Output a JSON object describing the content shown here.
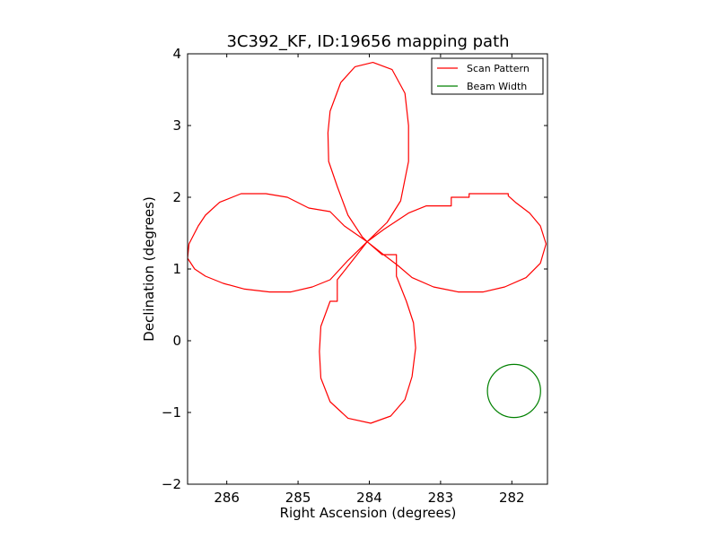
{
  "chart_data": {
    "type": "line",
    "title": "3C392_KF, ID:19656 mapping path",
    "xlabel": "Right Ascension (degrees)",
    "ylabel": "Declination (degrees)",
    "xlim": [
      286.55,
      281.5
    ],
    "ylim": [
      -2,
      4
    ],
    "x_ticks": [
      286,
      285,
      284,
      283,
      282
    ],
    "y_ticks": [
      -2,
      -1,
      0,
      1,
      2,
      3,
      4
    ],
    "x_tick_labels": [
      "286",
      "285",
      "284",
      "283",
      "282"
    ],
    "y_tick_labels": [
      "−2",
      "−1",
      "0",
      "1",
      "2",
      "3",
      "4"
    ],
    "grid": false,
    "legend_position": "top-right",
    "series": [
      {
        "name": "Scan Pattern",
        "color": "#ff0000",
        "points": [
          [
            284.03,
            1.38
          ],
          [
            283.75,
            1.65
          ],
          [
            283.56,
            1.95
          ],
          [
            283.45,
            2.5
          ],
          [
            283.45,
            3.0
          ],
          [
            283.5,
            3.45
          ],
          [
            283.68,
            3.78
          ],
          [
            283.95,
            3.88
          ],
          [
            284.2,
            3.82
          ],
          [
            284.4,
            3.6
          ],
          [
            284.55,
            3.2
          ],
          [
            284.58,
            2.9
          ],
          [
            284.57,
            2.5
          ],
          [
            284.45,
            2.15
          ],
          [
            284.3,
            1.75
          ],
          [
            284.1,
            1.45
          ],
          [
            284.03,
            1.38
          ],
          [
            283.8,
            1.55
          ],
          [
            283.45,
            1.78
          ],
          [
            283.2,
            1.88
          ],
          [
            282.85,
            1.88
          ],
          [
            282.85,
            2.0
          ],
          [
            282.6,
            2.0
          ],
          [
            282.6,
            2.05
          ],
          [
            282.3,
            2.05
          ],
          [
            282.05,
            2.05
          ],
          [
            282.05,
            2.02
          ],
          [
            281.95,
            1.93
          ],
          [
            281.75,
            1.78
          ],
          [
            281.6,
            1.6
          ],
          [
            281.52,
            1.35
          ],
          [
            281.6,
            1.08
          ],
          [
            281.8,
            0.88
          ],
          [
            282.1,
            0.75
          ],
          [
            282.4,
            0.68
          ],
          [
            282.75,
            0.68
          ],
          [
            283.1,
            0.75
          ],
          [
            283.4,
            0.88
          ],
          [
            283.6,
            1.05
          ],
          [
            283.8,
            1.2
          ],
          [
            284.03,
            1.38
          ],
          [
            284.3,
            1.12
          ],
          [
            284.55,
            0.85
          ],
          [
            284.8,
            0.75
          ],
          [
            285.1,
            0.68
          ],
          [
            285.4,
            0.68
          ],
          [
            285.75,
            0.72
          ],
          [
            286.05,
            0.8
          ],
          [
            286.3,
            0.9
          ],
          [
            286.45,
            1.0
          ],
          [
            286.55,
            1.15
          ],
          [
            286.53,
            1.35
          ],
          [
            286.4,
            1.6
          ],
          [
            286.3,
            1.75
          ],
          [
            286.1,
            1.93
          ],
          [
            285.8,
            2.05
          ],
          [
            285.45,
            2.05
          ],
          [
            285.15,
            2.0
          ],
          [
            284.85,
            1.85
          ],
          [
            284.55,
            1.8
          ],
          [
            284.35,
            1.6
          ],
          [
            284.03,
            1.38
          ],
          [
            283.82,
            1.2
          ],
          [
            283.62,
            1.2
          ],
          [
            283.62,
            0.9
          ],
          [
            283.48,
            0.55
          ],
          [
            283.38,
            0.25
          ],
          [
            283.35,
            -0.1
          ],
          [
            283.4,
            -0.5
          ],
          [
            283.5,
            -0.82
          ],
          [
            283.7,
            -1.05
          ],
          [
            283.98,
            -1.15
          ],
          [
            284.3,
            -1.08
          ],
          [
            284.55,
            -0.85
          ],
          [
            284.68,
            -0.52
          ],
          [
            284.7,
            -0.15
          ],
          [
            284.68,
            0.2
          ],
          [
            284.55,
            0.55
          ],
          [
            284.45,
            0.55
          ],
          [
            284.45,
            0.85
          ],
          [
            284.25,
            1.1
          ],
          [
            284.03,
            1.38
          ]
        ]
      },
      {
        "name": "Beam Width",
        "color": "#008000",
        "shape": "circle",
        "center": [
          281.97,
          -0.7
        ],
        "radius_deg": 0.37
      }
    ]
  }
}
